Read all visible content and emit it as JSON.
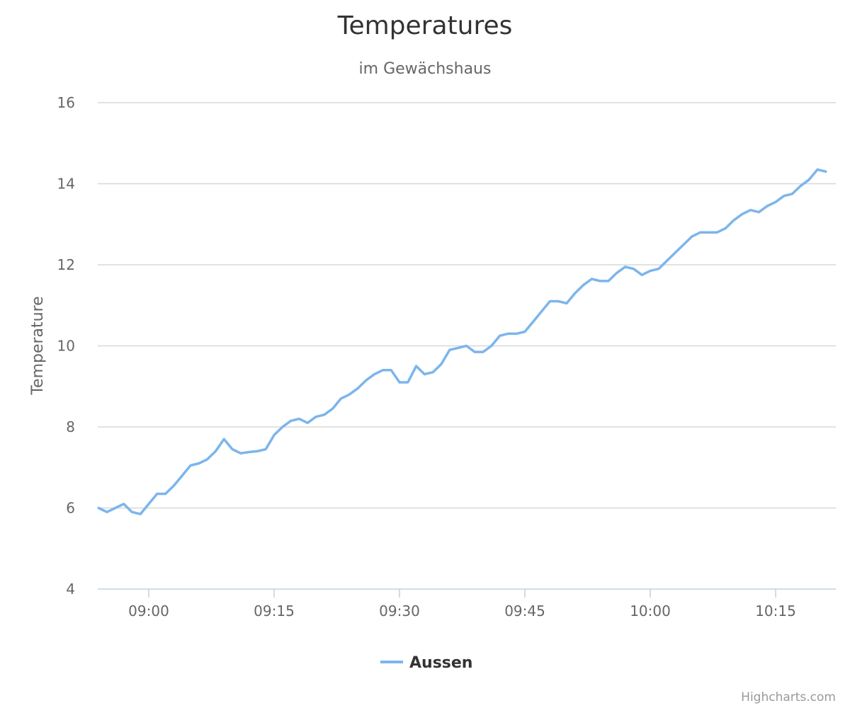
{
  "chart_data": {
    "type": "line",
    "title": "Temperatures",
    "subtitle": "im Gewächshaus",
    "xlabel": "",
    "ylabel": "Temperature",
    "ylim": [
      4,
      16
    ],
    "yticks": [
      4,
      6,
      8,
      10,
      12,
      14,
      16
    ],
    "xlim": [
      "08:54",
      "10:22"
    ],
    "xticks": [
      "09:00",
      "09:15",
      "09:30",
      "09:45",
      "10:00",
      "10:15"
    ],
    "grid": true,
    "legend_position": "bottom-center",
    "credits": "Highcharts.com",
    "colors": {
      "series": "#7cb5ec",
      "grid": "#d8d8d8",
      "axis": "#c0d0e0"
    },
    "series": [
      {
        "name": "Aussen",
        "x": [
          "08:54",
          "08:55",
          "08:56",
          "08:57",
          "08:58",
          "08:59",
          "09:00",
          "09:01",
          "09:02",
          "09:03",
          "09:04",
          "09:05",
          "09:06",
          "09:07",
          "09:08",
          "09:09",
          "09:10",
          "09:11",
          "09:12",
          "09:13",
          "09:14",
          "09:15",
          "09:16",
          "09:17",
          "09:18",
          "09:19",
          "09:20",
          "09:21",
          "09:22",
          "09:23",
          "09:24",
          "09:25",
          "09:26",
          "09:27",
          "09:28",
          "09:29",
          "09:30",
          "09:31",
          "09:32",
          "09:33",
          "09:34",
          "09:35",
          "09:36",
          "09:37",
          "09:38",
          "09:39",
          "09:40",
          "09:41",
          "09:42",
          "09:43",
          "09:44",
          "09:45",
          "09:46",
          "09:47",
          "09:48",
          "09:49",
          "09:50",
          "09:51",
          "09:52",
          "09:53",
          "09:54",
          "09:55",
          "09:56",
          "09:57",
          "09:58",
          "09:59",
          "10:00",
          "10:01",
          "10:02",
          "10:03",
          "10:04",
          "10:05",
          "10:06",
          "10:07",
          "10:08",
          "10:09",
          "10:10",
          "10:11",
          "10:12",
          "10:13",
          "10:14",
          "10:15",
          "10:16",
          "10:17",
          "10:18",
          "10:19",
          "10:20",
          "10:21"
        ],
        "values": [
          6.0,
          5.9,
          6.0,
          6.1,
          5.9,
          5.85,
          6.1,
          6.35,
          6.35,
          6.55,
          6.8,
          7.05,
          7.1,
          7.2,
          7.4,
          7.7,
          7.45,
          7.35,
          7.38,
          7.4,
          7.45,
          7.8,
          8.0,
          8.15,
          8.2,
          8.1,
          8.25,
          8.3,
          8.45,
          8.7,
          8.8,
          8.95,
          9.15,
          9.3,
          9.4,
          9.4,
          9.1,
          9.1,
          9.5,
          9.3,
          9.35,
          9.55,
          9.9,
          9.95,
          10.0,
          9.85,
          9.85,
          10.0,
          10.25,
          10.3,
          10.3,
          10.35,
          10.6,
          10.85,
          11.1,
          11.1,
          11.05,
          11.3,
          11.5,
          11.65,
          11.6,
          11.6,
          11.8,
          11.95,
          11.9,
          11.75,
          11.85,
          11.9,
          12.1,
          12.3,
          12.5,
          12.7,
          12.8,
          12.8,
          12.8,
          12.9,
          13.1,
          13.25,
          13.35,
          13.3,
          13.45,
          13.55,
          13.7,
          13.75,
          13.95,
          14.1,
          14.35,
          14.3
        ]
      }
    ]
  }
}
